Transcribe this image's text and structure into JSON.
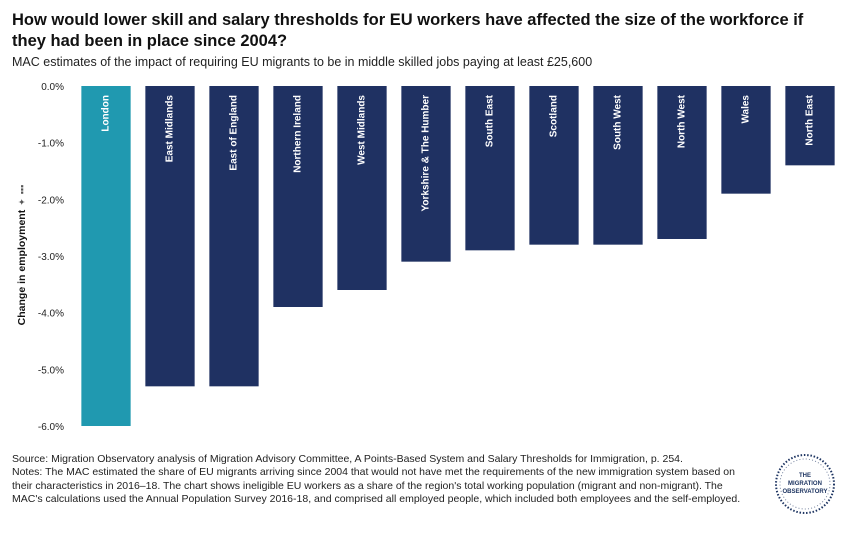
{
  "title": "How would lower skill and salary thresholds for EU workers have affected the size of the workforce if they had been in place since 2004?",
  "subtitle": "MAC estimates of the impact of requiring EU migrants to be in middle skilled jobs paying at least £25,600",
  "source_line": "Source: Migration Observatory analysis of Migration Advisory Committee, A Points-Based System and Salary Thresholds for Immigration, p. 254.",
  "notes": "Notes: The MAC estimated the share of EU migrants arriving since 2004 that would not have met the requirements of the new immigration system based on their characteristics in 2016–18. The chart shows ineligible EU workers as a share of the region's total working population (migrant and non-migrant). The MAC's calculations used the Annual Population Survey 2016-18, and comprised all employed people, which included both employees and the self-employed.",
  "logo": {
    "text": "THE MIGRATION OBSERVATORY",
    "line1": "THE",
    "line2": "MIGRATION",
    "line3": "OBSERVATORY",
    "color": "#1d3461"
  },
  "colors": {
    "highlight": "#2099b0",
    "bar": "#1f3162",
    "grid": "#ffffff"
  },
  "chart_data": {
    "type": "bar",
    "title": "How would lower skill and salary thresholds for EU workers have affected the size of the workforce if they had been in place since 2004?",
    "subtitle": "MAC estimates of the impact of requiring EU migrants to be in middle skilled jobs paying at least £25,600",
    "xlabel": "",
    "ylabel": "Change in employment",
    "categories": [
      "London",
      "East Midlands",
      "East of England",
      "Northern Ireland",
      "West Midlands",
      "Yorkshire & The Humber",
      "South East",
      "Scotland",
      "South West",
      "North West",
      "Wales",
      "North East"
    ],
    "values": [
      -6.0,
      -5.3,
      -5.3,
      -3.9,
      -3.6,
      -3.1,
      -2.9,
      -2.8,
      -2.8,
      -2.7,
      -1.9,
      -1.4
    ],
    "highlight_category": "London",
    "ylim": [
      -6.0,
      0.0
    ],
    "yticks": [
      "0.0%",
      "-1.0%",
      "-2.0%",
      "-3.0%",
      "-4.0%",
      "-5.0%",
      "-6.0%"
    ],
    "ytick_values": [
      0,
      -1,
      -2,
      -3,
      -4,
      -5,
      -6
    ],
    "grid": false,
    "legend": "none"
  }
}
